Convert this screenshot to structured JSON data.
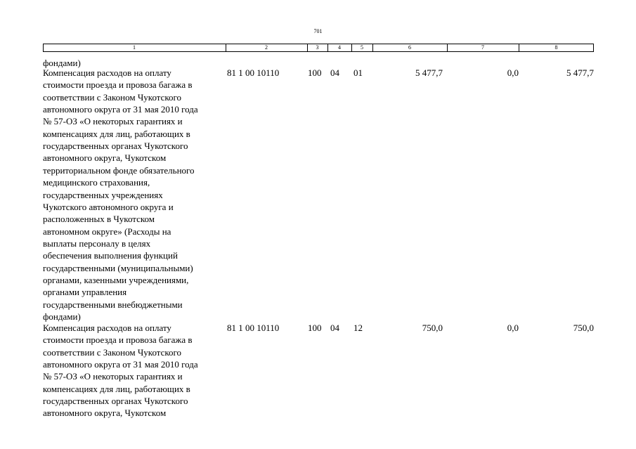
{
  "page_number": "701",
  "table": {
    "header": [
      "1",
      "2",
      "3",
      "4",
      "5",
      "6",
      "7",
      "8"
    ],
    "rows": [
      {
        "description": [
          "фондами)"
        ]
      },
      {
        "description": [
          "Компенсация расходов на оплату",
          "стоимости проезда и провоза багажа в",
          "соответствии с Законом Чукотского",
          "автономного округа от 31 мая 2010 года",
          "№ 57-ОЗ «О некоторых гарантиях и",
          "компенсациях для лиц, работающих в",
          "государственных органах Чукотского",
          "автономного округа, Чукотском",
          "территориальном фонде обязательного",
          "медицинского страхования,",
          "государственных учреждениях",
          "Чукотского автономного округа и",
          "расположенных в Чукотском",
          "автономном округе» (Расходы на",
          "выплаты персоналу в целях",
          "обеспечения выполнения функций",
          "государственными (муниципальными)",
          "органами, казенными учреждениями,",
          "органами управления",
          "государственными внебюджетными",
          "фондами)"
        ],
        "cells": [
          "81 1 00 10110",
          "100",
          "04",
          "01",
          "5 477,7",
          "0,0",
          "5 477,7"
        ]
      },
      {
        "description": [
          "Компенсация расходов на оплату",
          "стоимости проезда и провоза багажа в",
          "соответствии с Законом Чукотского",
          "автономного округа от 31 мая 2010 года",
          "№ 57-ОЗ «О некоторых гарантиях и",
          "компенсациях для лиц, работающих в",
          "государственных органах Чукотского",
          "автономного округа, Чукотском"
        ],
        "cells": [
          "81 1 00 10110",
          "100",
          "04",
          "12",
          "750,0",
          "0,0",
          "750,0"
        ]
      }
    ]
  }
}
